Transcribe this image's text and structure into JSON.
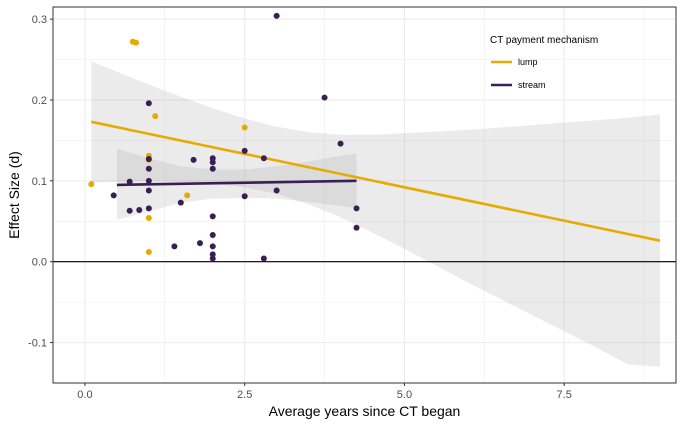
{
  "chart_data": {
    "type": "scatter",
    "title": "",
    "xlabel": "Average years since CT began",
    "ylabel": "Effect Size (d)",
    "xlim": [
      -0.5,
      9.25
    ],
    "ylim": [
      -0.15,
      0.315
    ],
    "x_ticks": [
      0,
      2.5,
      5,
      7.5
    ],
    "x_tick_labels": [
      "0.0",
      "2.5",
      "5.0",
      "7.5"
    ],
    "y_ticks": [
      -0.1,
      0,
      0.1,
      0.2,
      0.3
    ],
    "y_tick_labels": [
      "-0.1",
      "0.0",
      "0.1",
      "0.2",
      "0.3"
    ],
    "grid": true,
    "reference_line_y": 0,
    "legend": {
      "title": "CT payment mechanism",
      "placement": "top-right"
    },
    "series": [
      {
        "name": "lump",
        "color": "#E6AB02",
        "points": [
          [
            0.1,
            0.096
          ],
          [
            0.75,
            0.272
          ],
          [
            0.8,
            0.271
          ],
          [
            1.0,
            0.131
          ],
          [
            1.0,
            0.126
          ],
          [
            1.0,
            0.054
          ],
          [
            1.0,
            0.012
          ],
          [
            1.1,
            0.18
          ],
          [
            1.6,
            0.082
          ],
          [
            2.5,
            0.166
          ]
        ],
        "fit": {
          "x": [
            0.1,
            9.0
          ],
          "y": [
            0.173,
            0.026
          ]
        },
        "band": {
          "x": [
            0.1,
            0.5,
            1.0,
            1.5,
            2.0,
            2.5,
            3.0,
            3.5,
            4.0,
            4.5,
            5.0,
            5.5,
            6.0,
            6.5,
            7.0,
            7.5,
            8.0,
            8.5,
            9.0
          ],
          "upper": [
            0.248,
            0.235,
            0.219,
            0.204,
            0.19,
            0.177,
            0.167,
            0.16,
            0.157,
            0.157,
            0.159,
            0.161,
            0.163,
            0.166,
            0.169,
            0.172,
            0.175,
            0.178,
            0.182
          ],
          "lower": [
            0.098,
            0.099,
            0.1,
            0.099,
            0.097,
            0.092,
            0.084,
            0.071,
            0.055,
            0.036,
            0.016,
            -0.005,
            -0.026,
            -0.046,
            -0.066,
            -0.086,
            -0.106,
            -0.127,
            -0.13
          ]
        }
      },
      {
        "name": "stream",
        "color": "#3A1F56",
        "points": [
          [
            0.45,
            0.082
          ],
          [
            0.7,
            0.099
          ],
          [
            0.7,
            0.063
          ],
          [
            0.85,
            0.064
          ],
          [
            1.0,
            0.196
          ],
          [
            1.0,
            0.127
          ],
          [
            1.0,
            0.115
          ],
          [
            1.0,
            0.1
          ],
          [
            1.0,
            0.088
          ],
          [
            1.0,
            0.066
          ],
          [
            1.4,
            0.019
          ],
          [
            1.5,
            0.073
          ],
          [
            1.7,
            0.126
          ],
          [
            1.8,
            0.023
          ],
          [
            2.0,
            0.128
          ],
          [
            2.0,
            0.123
          ],
          [
            2.0,
            0.115
          ],
          [
            2.0,
            0.056
          ],
          [
            2.0,
            0.033
          ],
          [
            2.0,
            0.019
          ],
          [
            2.0,
            0.009
          ],
          [
            2.0,
            0.004
          ],
          [
            2.5,
            0.137
          ],
          [
            2.5,
            0.081
          ],
          [
            2.8,
            0.128
          ],
          [
            2.8,
            0.004
          ],
          [
            3.0,
            0.304
          ],
          [
            3.0,
            0.088
          ],
          [
            3.75,
            0.203
          ],
          [
            4.0,
            0.146
          ],
          [
            4.25,
            0.066
          ],
          [
            4.25,
            0.042
          ]
        ],
        "fit": {
          "x": [
            0.5,
            4.25
          ],
          "y": [
            0.095,
            0.1
          ]
        },
        "band": {
          "x": [
            0.5,
            1.0,
            1.5,
            2.0,
            2.5,
            3.0,
            3.5,
            4.0,
            4.25
          ],
          "upper": [
            0.14,
            0.128,
            0.118,
            0.114,
            0.114,
            0.118,
            0.124,
            0.131,
            0.134
          ],
          "lower": [
            0.052,
            0.062,
            0.073,
            0.078,
            0.079,
            0.078,
            0.074,
            0.069,
            0.066
          ]
        }
      }
    ]
  }
}
